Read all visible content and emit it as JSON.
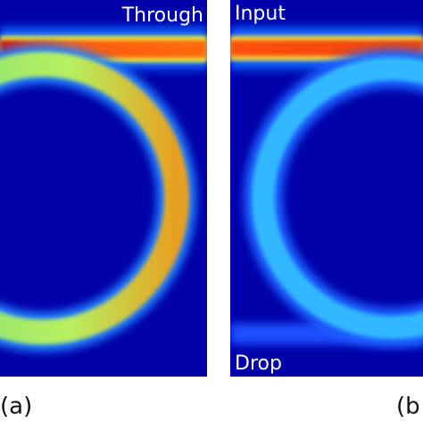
{
  "panels": [
    {
      "labels": [
        "Through"
      ],
      "caption": "(a)"
    },
    {
      "labels": [
        "Input",
        "Drop"
      ],
      "caption": "(b"
    }
  ]
}
